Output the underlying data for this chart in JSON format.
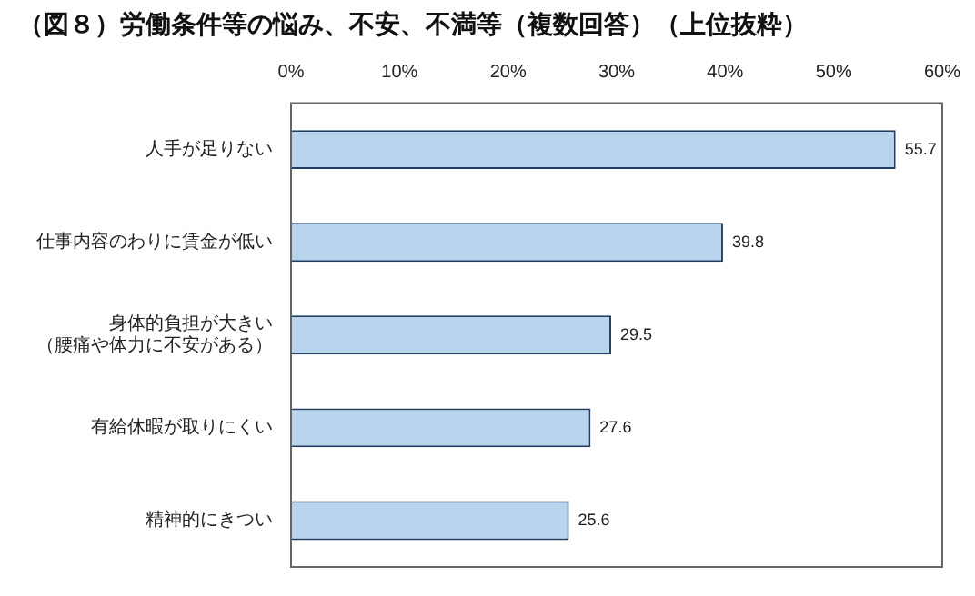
{
  "chart_data": {
    "type": "bar",
    "orientation": "horizontal",
    "title": "（図８）労働条件等の悩み、不安、不満等（複数回答）（上位抜粋）",
    "categories": [
      "人手が足りない",
      "仕事内容のわりに賃金が低い",
      "身体的負担が大きい（腰痛や体力に不安がある）",
      "有給休暇が取りにくい",
      "精神的にきつい"
    ],
    "values": [
      55.7,
      39.8,
      29.5,
      27.6,
      25.6
    ],
    "color": "#b9d5ee",
    "xlim": [
      0,
      60
    ],
    "xticks": [
      {
        "value": 0,
        "label": "0%"
      },
      {
        "value": 10,
        "label": "10%"
      },
      {
        "value": 20,
        "label": "20%"
      },
      {
        "value": 30,
        "label": "30%"
      },
      {
        "value": 40,
        "label": "40%"
      },
      {
        "value": 50,
        "label": "50%"
      },
      {
        "value": 60,
        "label": "60%"
      }
    ],
    "grid": false,
    "legend": false,
    "data_labels": true
  }
}
